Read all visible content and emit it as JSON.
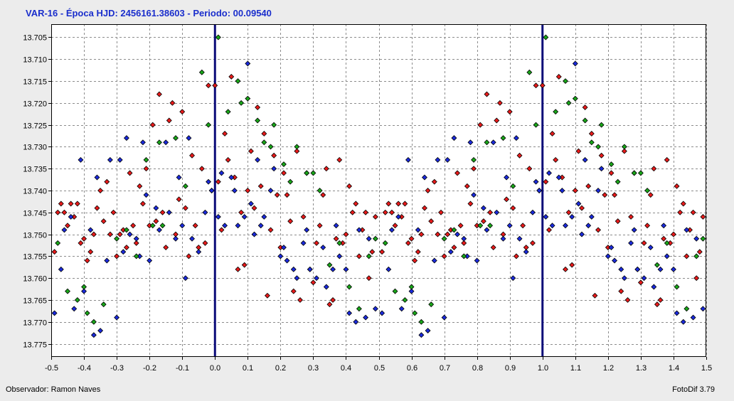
{
  "header": {
    "title": "VAR-16  -  Época HJD: 2456161.38603  -  Periodo: 00.09540"
  },
  "footer": {
    "observer": "Observador: Ramon Naves",
    "software": "FotoDif 3.79"
  },
  "colors": {
    "red": "#e81a1a",
    "blue": "#1a2adc",
    "green": "#19a619",
    "phase_line": "#0a0a78",
    "title": "#1a2ecc"
  },
  "chart_data": {
    "type": "scatter",
    "xlim": [
      -0.5,
      1.5
    ],
    "ylim": [
      13.702,
      13.778
    ],
    "y_inverted": true,
    "grid": true,
    "x_ticks": [
      -0.5,
      -0.4,
      -0.3,
      -0.2,
      -0.1,
      0.0,
      0.1,
      0.2,
      0.3,
      0.4,
      0.5,
      0.6,
      0.7,
      0.8,
      0.9,
      1.0,
      1.1,
      1.2,
      1.3,
      1.4,
      1.5
    ],
    "x_tick_labels": [
      "-0.5",
      "-0.4",
      "-0.3",
      "-0.2",
      "-0.1",
      "0.0",
      "0.1",
      "0.2",
      "0.3",
      "0.4",
      "0.5",
      "0.6",
      "0.7",
      "0.8",
      "0.9",
      "1.0",
      "1.1",
      "1.2",
      "1.3",
      "1.4",
      "1.5"
    ],
    "y_ticks": [
      13.705,
      13.71,
      13.715,
      13.72,
      13.725,
      13.73,
      13.735,
      13.74,
      13.745,
      13.75,
      13.755,
      13.76,
      13.765,
      13.77,
      13.775
    ],
    "y_tick_labels": [
      "13.705",
      "13.710",
      "13.715",
      "13.720",
      "13.725",
      "13.730",
      "13.735",
      "13.740",
      "13.745",
      "13.750",
      "13.755",
      "13.760",
      "13.765",
      "13.770",
      "13.775"
    ],
    "vertical_lines": [
      0.0,
      1.0
    ],
    "repeat_period_shift": 1.0,
    "series": [
      {
        "color": "red",
        "points": [
          [
            -0.49,
            13.754
          ],
          [
            -0.48,
            13.745
          ],
          [
            -0.47,
            13.743
          ],
          [
            -0.46,
            13.745
          ],
          [
            -0.45,
            13.748
          ],
          [
            -0.44,
            13.743
          ],
          [
            -0.43,
            13.746
          ],
          [
            -0.42,
            13.743
          ],
          [
            -0.41,
            13.752
          ],
          [
            -0.4,
            13.751
          ],
          [
            -0.39,
            13.756
          ],
          [
            -0.38,
            13.754
          ],
          [
            -0.37,
            13.75
          ],
          [
            -0.36,
            13.744
          ],
          [
            -0.35,
            13.74
          ],
          [
            -0.34,
            13.747
          ],
          [
            -0.33,
            13.738
          ],
          [
            -0.32,
            13.75
          ],
          [
            -0.31,
            13.745
          ],
          [
            -0.3,
            13.755
          ],
          [
            -0.29,
            13.75
          ],
          [
            -0.28,
            13.749
          ],
          [
            -0.27,
            13.753
          ],
          [
            -0.26,
            13.736
          ],
          [
            -0.25,
            13.748
          ],
          [
            -0.24,
            13.752
          ],
          [
            -0.23,
            13.739
          ],
          [
            -0.22,
            13.743
          ],
          [
            -0.21,
            13.735
          ],
          [
            -0.2,
            13.748
          ],
          [
            -0.19,
            13.725
          ],
          [
            -0.18,
            13.747
          ],
          [
            -0.17,
            13.718
          ],
          [
            -0.16,
            13.745
          ],
          [
            -0.15,
            13.753
          ],
          [
            -0.14,
            13.724
          ],
          [
            -0.13,
            13.72
          ],
          [
            -0.12,
            13.75
          ],
          [
            -0.11,
            13.742
          ],
          [
            -0.1,
            13.722
          ],
          [
            -0.09,
            13.744
          ],
          [
            -0.08,
            13.755
          ],
          [
            -0.07,
            13.732
          ],
          [
            -0.06,
            13.748
          ],
          [
            -0.05,
            13.753
          ],
          [
            -0.04,
            13.735
          ],
          [
            -0.03,
            13.752
          ],
          [
            -0.02,
            13.716
          ],
          [
            -0.01,
            13.74
          ],
          [
            0.0,
            13.716
          ],
          [
            0.01,
            13.738
          ],
          [
            0.02,
            13.749
          ],
          [
            0.03,
            13.727
          ],
          [
            0.04,
            13.733
          ],
          [
            0.05,
            13.714
          ],
          [
            0.06,
            13.737
          ],
          [
            0.07,
            13.758
          ],
          [
            0.08,
            13.745
          ],
          [
            0.09,
            13.757
          ],
          [
            0.1,
            13.74
          ],
          [
            0.11,
            13.731
          ],
          [
            0.12,
            13.744
          ],
          [
            0.13,
            13.721
          ],
          [
            0.14,
            13.739
          ],
          [
            0.15,
            13.727
          ],
          [
            0.16,
            13.764
          ],
          [
            0.17,
            13.749
          ],
          [
            0.18,
            13.732
          ],
          [
            0.19,
            13.741
          ],
          [
            0.2,
            13.753
          ],
          [
            0.21,
            13.736
          ],
          [
            0.22,
            13.741
          ],
          [
            0.23,
            13.747
          ],
          [
            0.24,
            13.763
          ],
          [
            0.25,
            13.731
          ],
          [
            0.26,
            13.765
          ],
          [
            0.27,
            13.746
          ],
          [
            0.28,
            13.736
          ],
          [
            0.29,
            13.758
          ],
          [
            0.3,
            13.761
          ],
          [
            0.31,
            13.752
          ],
          [
            0.32,
            13.748
          ],
          [
            0.33,
            13.741
          ],
          [
            0.34,
            13.735
          ],
          [
            0.35,
            13.766
          ],
          [
            0.36,
            13.765
          ],
          [
            0.37,
            13.751
          ],
          [
            0.38,
            13.733
          ],
          [
            0.39,
            13.752
          ],
          [
            0.4,
            13.75
          ],
          [
            0.41,
            13.739
          ],
          [
            0.42,
            13.745
          ],
          [
            0.43,
            13.743
          ],
          [
            0.44,
            13.755
          ],
          [
            0.45,
            13.749
          ],
          [
            0.46,
            13.745
          ],
          [
            0.47,
            13.76
          ],
          [
            0.48,
            13.754
          ],
          [
            0.49,
            13.746
          ]
        ]
      },
      {
        "color": "blue",
        "points": [
          [
            -0.49,
            13.768
          ],
          [
            -0.47,
            13.758
          ],
          [
            -0.46,
            13.749
          ],
          [
            -0.44,
            13.746
          ],
          [
            -0.43,
            13.767
          ],
          [
            -0.41,
            13.733
          ],
          [
            -0.4,
            13.763
          ],
          [
            -0.38,
            13.749
          ],
          [
            -0.37,
            13.773
          ],
          [
            -0.36,
            13.737
          ],
          [
            -0.35,
            13.772
          ],
          [
            -0.33,
            13.756
          ],
          [
            -0.32,
            13.733
          ],
          [
            -0.3,
            13.769
          ],
          [
            -0.29,
            13.733
          ],
          [
            -0.28,
            13.754
          ],
          [
            -0.27,
            13.728
          ],
          [
            -0.26,
            13.75
          ],
          [
            -0.24,
            13.751
          ],
          [
            -0.23,
            13.755
          ],
          [
            -0.22,
            13.729
          ],
          [
            -0.21,
            13.741
          ],
          [
            -0.2,
            13.756
          ],
          [
            -0.18,
            13.744
          ],
          [
            -0.17,
            13.749
          ],
          [
            -0.15,
            13.729
          ],
          [
            -0.14,
            13.745
          ],
          [
            -0.12,
            13.751
          ],
          [
            -0.11,
            13.737
          ],
          [
            -0.1,
            13.748
          ],
          [
            -0.09,
            13.76
          ],
          [
            -0.08,
            13.728
          ],
          [
            -0.07,
            13.751
          ],
          [
            -0.05,
            13.754
          ],
          [
            -0.03,
            13.745
          ],
          [
            -0.02,
            13.738
          ],
          [
            -0.01,
            13.74
          ],
          [
            0.01,
            13.746
          ],
          [
            0.02,
            13.736
          ],
          [
            0.03,
            13.748
          ],
          [
            0.05,
            13.737
          ],
          [
            0.06,
            13.74
          ],
          [
            0.07,
            13.748
          ],
          [
            0.09,
            13.746
          ],
          [
            0.1,
            13.711
          ],
          [
            0.11,
            13.743
          ],
          [
            0.12,
            13.75
          ],
          [
            0.13,
            13.733
          ],
          [
            0.14,
            13.748
          ],
          [
            0.15,
            13.746
          ],
          [
            0.17,
            13.74
          ],
          [
            0.18,
            13.735
          ],
          [
            0.2,
            13.755
          ],
          [
            0.21,
            13.753
          ],
          [
            0.22,
            13.756
          ],
          [
            0.24,
            13.758
          ],
          [
            0.25,
            13.76
          ],
          [
            0.27,
            13.752
          ],
          [
            0.28,
            13.749
          ],
          [
            0.29,
            13.758
          ],
          [
            0.31,
            13.76
          ],
          [
            0.33,
            13.753
          ],
          [
            0.34,
            13.762
          ],
          [
            0.36,
            13.758
          ],
          [
            0.37,
            13.748
          ],
          [
            0.38,
            13.755
          ],
          [
            0.4,
            13.758
          ],
          [
            0.41,
            13.768
          ],
          [
            0.43,
            13.77
          ],
          [
            0.44,
            13.749
          ],
          [
            0.46,
            13.769
          ],
          [
            0.47,
            13.751
          ],
          [
            0.49,
            13.767
          ]
        ]
      },
      {
        "color": "green",
        "points": [
          [
            -0.48,
            13.752
          ],
          [
            -0.45,
            13.763
          ],
          [
            -0.42,
            13.765
          ],
          [
            -0.4,
            13.762
          ],
          [
            -0.39,
            13.768
          ],
          [
            -0.37,
            13.77
          ],
          [
            -0.34,
            13.766
          ],
          [
            -0.3,
            13.751
          ],
          [
            -0.27,
            13.749
          ],
          [
            -0.24,
            13.755
          ],
          [
            -0.21,
            13.733
          ],
          [
            -0.19,
            13.748
          ],
          [
            -0.17,
            13.729
          ],
          [
            -0.16,
            13.748
          ],
          [
            -0.12,
            13.728
          ],
          [
            -0.09,
            13.739
          ],
          [
            -0.04,
            13.713
          ],
          [
            -0.02,
            13.725
          ],
          [
            0.01,
            13.705
          ],
          [
            0.04,
            13.722
          ],
          [
            0.07,
            13.715
          ],
          [
            0.08,
            13.72
          ],
          [
            0.1,
            13.719
          ],
          [
            0.13,
            13.724
          ],
          [
            0.15,
            13.729
          ],
          [
            0.17,
            13.73
          ],
          [
            0.18,
            13.725
          ],
          [
            0.21,
            13.734
          ],
          [
            0.23,
            13.738
          ],
          [
            0.25,
            13.73
          ],
          [
            0.28,
            13.736
          ],
          [
            0.3,
            13.736
          ],
          [
            0.32,
            13.74
          ],
          [
            0.35,
            13.757
          ],
          [
            0.38,
            13.752
          ],
          [
            0.41,
            13.762
          ],
          [
            0.44,
            13.767
          ],
          [
            0.47,
            13.755
          ],
          [
            0.49,
            13.751
          ]
        ]
      }
    ]
  }
}
